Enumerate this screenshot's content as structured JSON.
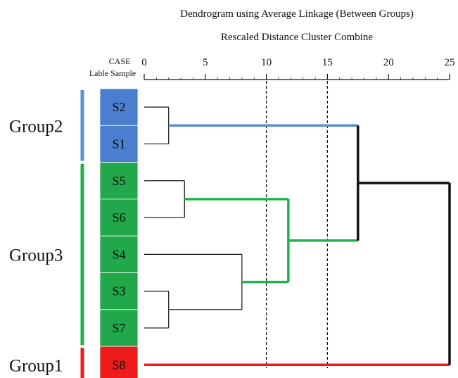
{
  "title": "Dendrogram using Average Linkage (Between Groups)",
  "subtitle": "Rescaled Distance Cluster Combine",
  "case_header": "CASE",
  "label_header": "Lable Sample",
  "axis": {
    "min": 0,
    "max": 25,
    "ticks": [
      0,
      5,
      10,
      15,
      20,
      25
    ],
    "dashed_reference_lines": [
      10,
      15
    ]
  },
  "samples": [
    {
      "id": "S2",
      "group": "Group2"
    },
    {
      "id": "S1",
      "group": "Group2"
    },
    {
      "id": "S5",
      "group": "Group3"
    },
    {
      "id": "S6",
      "group": "Group3"
    },
    {
      "id": "S4",
      "group": "Group3"
    },
    {
      "id": "S3",
      "group": "Group3"
    },
    {
      "id": "S7",
      "group": "Group3"
    },
    {
      "id": "S8",
      "group": "Group1"
    }
  ],
  "groups": [
    {
      "name": "Group2",
      "color": "#5b8fd6",
      "fill": "#4a7fcf",
      "first": 0,
      "last": 1
    },
    {
      "name": "Group3",
      "color": "#1fb24a",
      "fill": "#21a84a",
      "first": 2,
      "last": 6
    },
    {
      "name": "Group1",
      "color": "#ee1c1c",
      "fill": "#ee1c1c",
      "first": 7,
      "last": 7
    }
  ],
  "merges": [
    {
      "a": "S2",
      "b": "S1",
      "id": "m_S2_S1",
      "distance": 2.0,
      "color": "#111111"
    },
    {
      "a": "S3",
      "b": "S7",
      "id": "m_S3_S7",
      "distance": 2.0,
      "color": "#111111"
    },
    {
      "a": "S5",
      "b": "S6",
      "id": "m_S5_S6",
      "distance": 3.3,
      "color": "#111111"
    },
    {
      "a": "S4",
      "b": "m_S3_S7",
      "id": "m_S4_S3S7",
      "distance": 8.0,
      "color": "#111111"
    },
    {
      "a": "m_S5_S6",
      "b": "m_S4_S3S7",
      "id": "m_G3",
      "distance": 11.8,
      "color": "#1fb24a"
    },
    {
      "a": "m_S2_S1",
      "b": "m_G3",
      "id": "m_G2G3",
      "distance": 17.5,
      "color": "#111111",
      "link_colors": [
        "#5b8fd6",
        "#1fb24a"
      ]
    },
    {
      "a": "m_G2G3",
      "b": "S8",
      "id": "m_all",
      "distance": 25.0,
      "color": "#111111",
      "link_colors": [
        "#111111",
        "#ee1c1c"
      ]
    }
  ],
  "colors": {
    "branch": "#111111",
    "axis": "#111111"
  }
}
